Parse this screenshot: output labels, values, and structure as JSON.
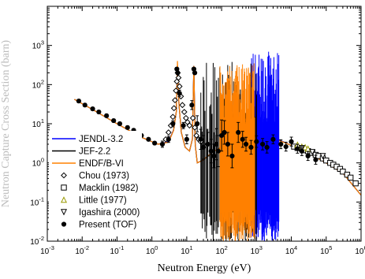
{
  "chart_data": {
    "type": "line",
    "title": "",
    "xlabel": "Neutron Energy (eV)",
    "ylabel": "Neutron Capture Cross Section (barn)",
    "xscale": "log",
    "yscale": "log",
    "xlim": [
      0.001,
      1000000
    ],
    "ylim": [
      0.01,
      10000
    ],
    "x_tick_labels": [
      "10-3",
      "10-2",
      "10-1",
      "100",
      "101",
      "102",
      "103",
      "104",
      "105",
      "106"
    ],
    "y_tick_labels": [
      "10-2",
      "10-1",
      "100",
      "101",
      "102",
      "103"
    ],
    "grid": false,
    "legend_position": "lower-left",
    "legend": [
      "JENDL-3.2",
      "JEF-2.2",
      "ENDF/B-VI",
      "Chou (1973)",
      "Macklin (1982)",
      "Little (1977)",
      "Igashira (2000)",
      "Present (TOF)"
    ],
    "colors": {
      "JENDL-3.2": "#0000ff",
      "JEF-2.2": "#000000",
      "ENDF/B-VI": "#ff8000",
      "Little (1977)": "#999900"
    },
    "series": [
      {
        "name": "JENDL-3.2",
        "kind": "curve",
        "x": [
          0.006,
          0.02,
          0.1,
          0.5,
          1.5,
          3.0,
          4.2,
          5.0,
          5.4,
          6.0,
          7.0,
          9.0,
          12.0,
          14.5,
          16.0,
          17.5,
          20.0,
          30.0,
          60.0,
          150.0,
          400.0,
          1000.0,
          2000.0,
          3000.0,
          3800.0,
          5000.0,
          10000.0,
          30000.0,
          100000.0,
          300000.0,
          1000000.0
        ],
        "y": [
          42.0,
          23.0,
          10.0,
          4.5,
          3.0,
          3.5,
          7.0,
          20.0,
          300.0,
          30.0,
          6.0,
          2.5,
          2.0,
          4.0,
          300.0,
          3.0,
          1.0,
          1.2,
          2.0,
          3.0,
          4.0,
          4.5,
          4.2,
          4.0,
          3.9,
          3.7,
          2.8,
          1.8,
          1.0,
          0.55,
          0.15
        ]
      },
      {
        "name": "JEF-2.2",
        "kind": "curve",
        "x": [
          0.006,
          0.02,
          0.1,
          0.5,
          1.5,
          3.0,
          4.2,
          5.0,
          5.4,
          6.0,
          7.0,
          9.0,
          12.0,
          14.5,
          16.0,
          17.5,
          20.0,
          30.0,
          60.0,
          150.0,
          400.0,
          1000.0,
          5000.0,
          10000.0,
          30000.0,
          100000.0,
          300000.0,
          1000000.0
        ],
        "y": [
          42.0,
          23.0,
          10.0,
          4.5,
          3.0,
          3.4,
          6.8,
          20.0,
          300.0,
          30.0,
          6.0,
          2.5,
          2.0,
          4.0,
          300.0,
          3.0,
          1.0,
          1.2,
          2.0,
          3.0,
          4.0,
          4.3,
          3.6,
          2.8,
          1.8,
          1.0,
          0.55,
          0.15
        ]
      },
      {
        "name": "ENDF/B-VI",
        "kind": "curve",
        "x": [
          0.006,
          0.02,
          0.1,
          0.5,
          1.5,
          3.0,
          4.2,
          5.0,
          5.4,
          6.0,
          7.0,
          9.0,
          12.0,
          14.5,
          16.0,
          17.5,
          20.0,
          30.0,
          60.0,
          150.0,
          400.0,
          800.0,
          1000.0,
          5000.0,
          10000.0,
          30000.0,
          100000.0,
          300000.0,
          1000000.0
        ],
        "y": [
          42.0,
          23.0,
          10.0,
          4.5,
          3.0,
          3.4,
          6.8,
          20.0,
          400.0,
          30.0,
          6.0,
          2.5,
          2.0,
          4.0,
          300.0,
          3.0,
          1.0,
          1.2,
          2.0,
          3.0,
          4.0,
          4.2,
          4.4,
          3.6,
          2.8,
          1.8,
          1.0,
          0.55,
          0.15
        ]
      },
      {
        "name": "Chou (1973)",
        "kind": "markers",
        "marker": "diamond",
        "x": [
          2.5,
          3.0,
          3.5,
          4.0,
          4.3,
          4.6,
          4.9,
          5.2,
          5.5,
          5.8,
          6.2,
          6.8,
          7.5,
          8.5,
          9.5,
          10.5,
          12.0,
          15.0,
          17.0,
          19.0,
          22.0,
          25.0
        ],
        "y": [
          4.0,
          6.0,
          9.0,
          15.0,
          25.0,
          40.0,
          70.0,
          120.0,
          200.0,
          150.0,
          90.0,
          50.0,
          30.0,
          20.0,
          14.0,
          11.0,
          9.0,
          14.0,
          8.0,
          5.0,
          4.0,
          3.5
        ]
      },
      {
        "name": "Macklin (1982)",
        "kind": "markers",
        "marker": "square",
        "x": [
          12000.0,
          15000.0,
          20000.0,
          25000.0,
          30000.0,
          40000.0,
          50000.0,
          60000.0,
          80000.0,
          100000.0,
          130000.0,
          160000.0,
          200000.0,
          250000.0,
          300000.0,
          400000.0,
          500000.0,
          700000.0
        ],
        "y": [
          2.6,
          2.4,
          2.3,
          2.1,
          2.0,
          1.8,
          1.6,
          1.5,
          1.3,
          1.15,
          1.0,
          0.9,
          0.8,
          0.7,
          0.6,
          0.5,
          0.42,
          0.3
        ]
      },
      {
        "name": "Little (1977)",
        "kind": "markers",
        "marker": "triangle-up",
        "x": [
          15000.0,
          20000.0,
          25000.0,
          30000.0
        ],
        "y": [
          2.9,
          2.6,
          2.5,
          2.3
        ]
      },
      {
        "name": "Igashira (2000)",
        "kind": "markers",
        "marker": "triangle-down",
        "x": [
          20000.0,
          40000.0,
          80000.0
        ],
        "y": [
          2.4,
          1.9,
          1.5
        ]
      },
      {
        "name": "Present (TOF)",
        "kind": "markers_errorbars",
        "marker": "circle-filled",
        "x": [
          0.008,
          0.012,
          0.02,
          0.03,
          0.05,
          0.08,
          0.12,
          0.2,
          0.3,
          0.5,
          0.8,
          1.2,
          2.0,
          3.0,
          4.0,
          5.2,
          5.5,
          6.2,
          8.0,
          10.0,
          14.0,
          16.0,
          17.0,
          20.0,
          25.0,
          30.0,
          40.0,
          50.0,
          60.0,
          70.0,
          80.0,
          100.0,
          120.0,
          150.0,
          200.0,
          300.0,
          400.0,
          500.0,
          700.0,
          1000.0,
          1500.0,
          2000.0,
          3000.0,
          5000.0,
          7000.0,
          10000.0,
          15000.0,
          20000.0,
          30000.0,
          50000.0
        ],
        "y": [
          38.0,
          30.0,
          24.0,
          20.0,
          16.0,
          12.0,
          10.0,
          8.0,
          6.8,
          5.0,
          4.0,
          3.2,
          3.0,
          4.0,
          10.0,
          250.0,
          200.0,
          60.0,
          9.0,
          4.0,
          30.0,
          250.0,
          200.0,
          10.0,
          4.0,
          2.5,
          3.0,
          2.0,
          1.5,
          3.0,
          2.0,
          5.0,
          6.0,
          3.0,
          1.5,
          6.0,
          4.0,
          3.0,
          2.5,
          3.5,
          3.0,
          2.5,
          4.0,
          3.0,
          2.6,
          3.5,
          2.3,
          2.0,
          1.5,
          1.2
        ],
        "yerr_factor": [
          1.1,
          1.1,
          1.1,
          1.1,
          1.1,
          1.1,
          1.1,
          1.1,
          1.1,
          1.1,
          1.1,
          1.1,
          1.2,
          1.2,
          1.2,
          1.1,
          1.1,
          1.2,
          1.2,
          1.3,
          1.3,
          1.1,
          1.1,
          1.6,
          1.8,
          2.0,
          2.0,
          2.0,
          2.0,
          2.5,
          2.5,
          2.5,
          2.0,
          2.0,
          2.0,
          1.8,
          1.6,
          1.5,
          1.5,
          1.4,
          1.4,
          1.4,
          1.3,
          1.3,
          1.3,
          1.3,
          1.3,
          1.3,
          1.3,
          1.3
        ]
      }
    ]
  }
}
